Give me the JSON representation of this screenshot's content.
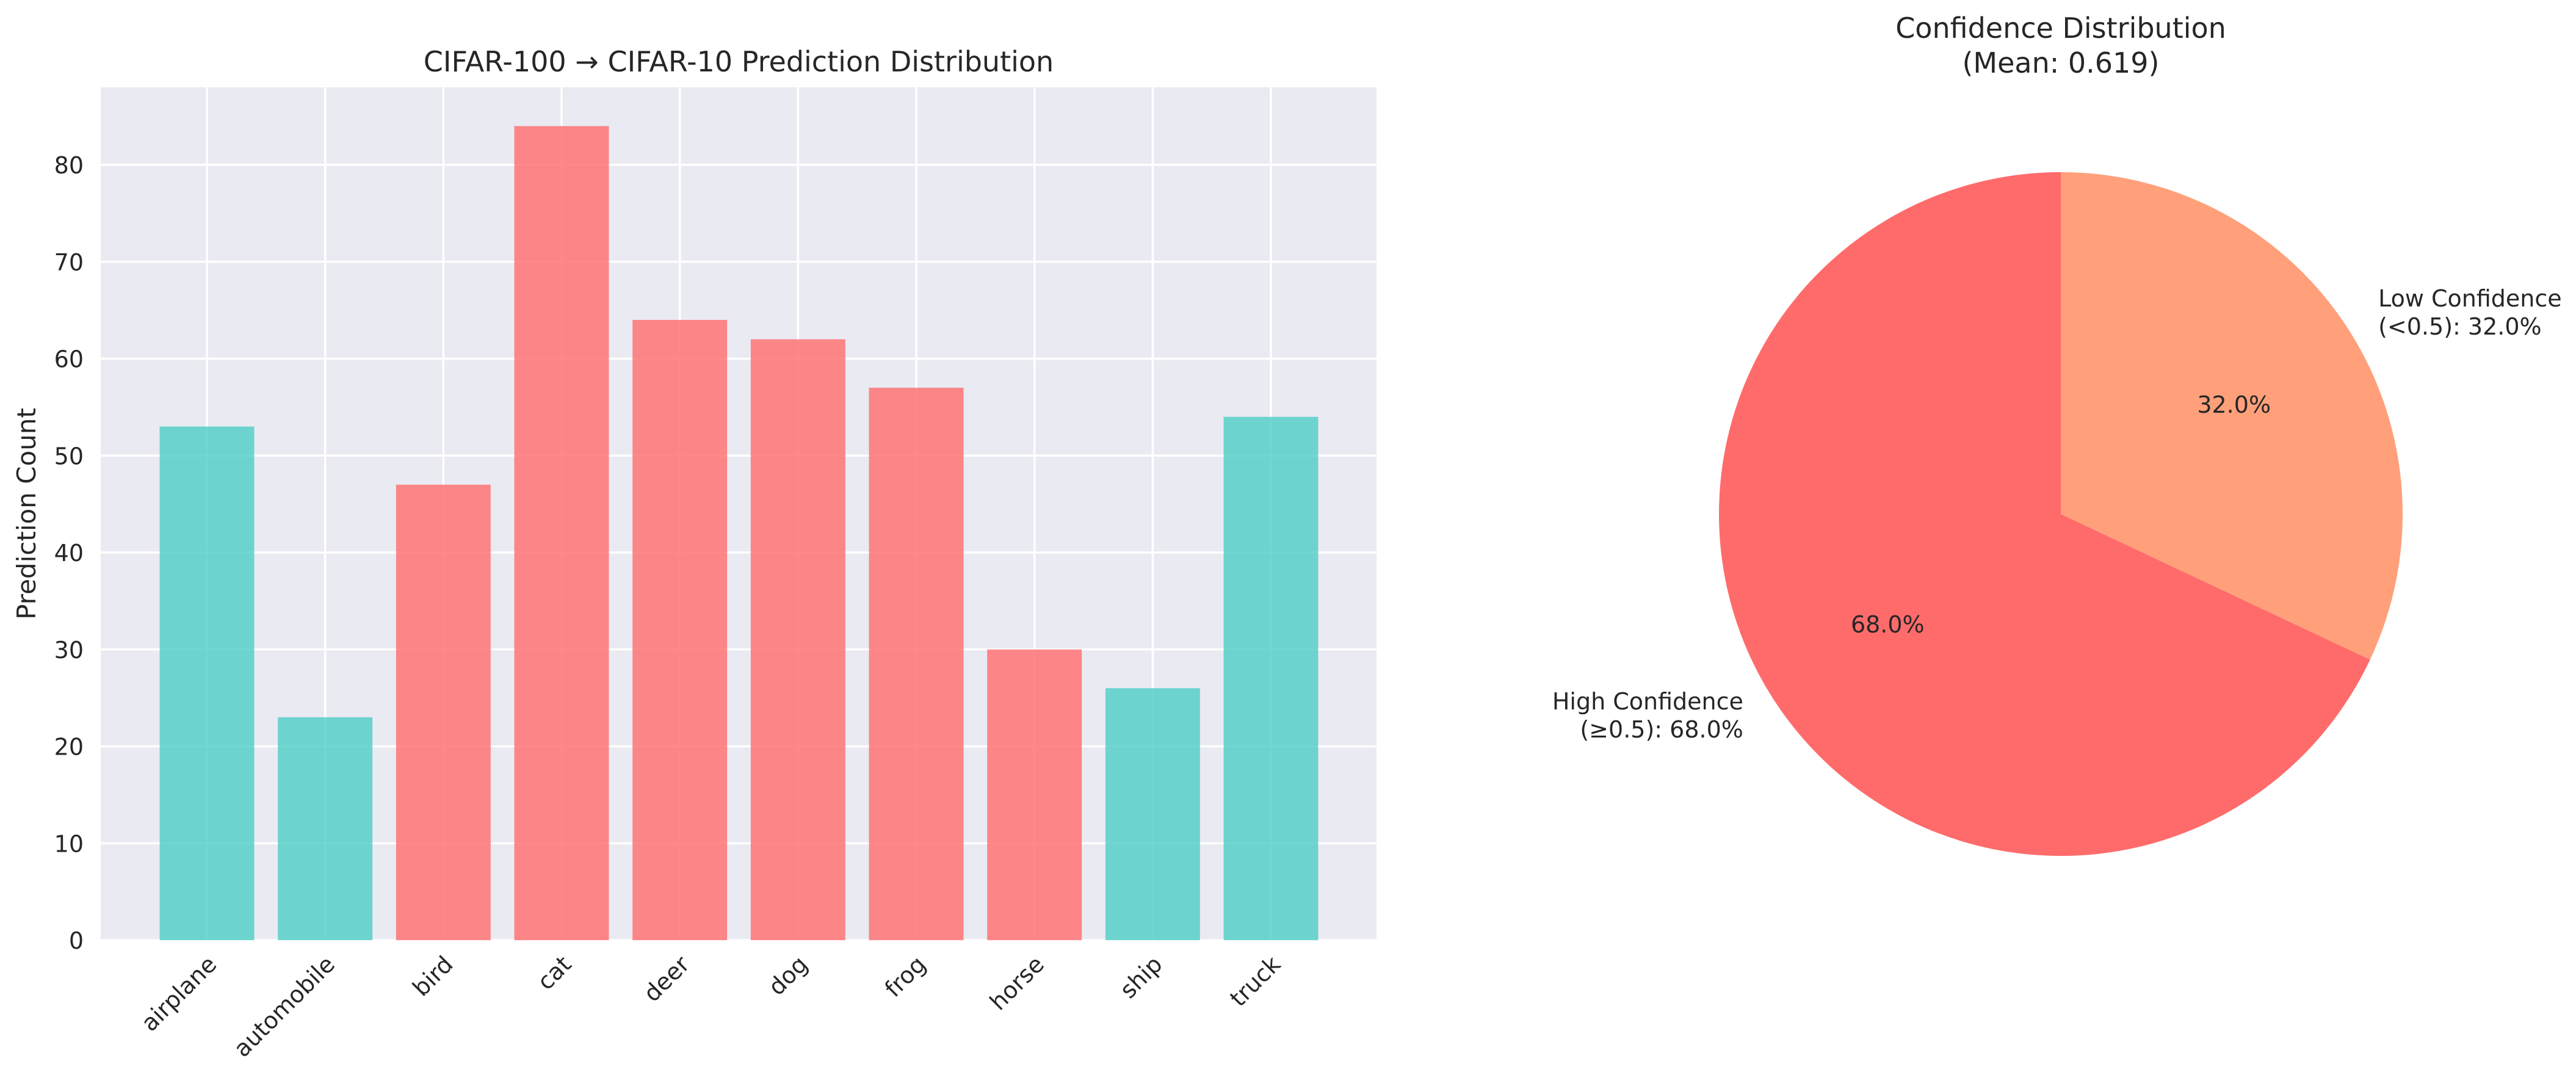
{
  "chart_data": [
    {
      "type": "bar",
      "title": "CIFAR-100 → CIFAR-10 Prediction Distribution",
      "xlabel": "",
      "ylabel": "Prediction Count",
      "ylim": [
        0,
        88
      ],
      "yticks": [
        0,
        10,
        20,
        30,
        40,
        50,
        60,
        70,
        80
      ],
      "grid": true,
      "categories": [
        "airplane",
        "automobile",
        "bird",
        "cat",
        "deer",
        "dog",
        "frog",
        "horse",
        "ship",
        "truck"
      ],
      "values": [
        53,
        23,
        47,
        84,
        64,
        62,
        57,
        30,
        26,
        54
      ],
      "bar_colors": [
        "#4ecdc4",
        "#4ecdc4",
        "#ff6b6b",
        "#ff6b6b",
        "#ff6b6b",
        "#ff6b6b",
        "#ff6b6b",
        "#ff6b6b",
        "#4ecdc4",
        "#4ecdc4"
      ]
    },
    {
      "type": "pie",
      "title": "Confidence Distribution\n(Mean: 0.619)",
      "slices": [
        {
          "label": "High Confidence\n(≥0.5): 68.0%",
          "value": 68.0,
          "pct_label": "68.0%",
          "color": "#ff6b6b"
        },
        {
          "label": "Low Confidence\n(<0.5): 32.0%",
          "value": 32.0,
          "pct_label": "32.0%",
          "color": "#ffa07a"
        }
      ]
    }
  ]
}
